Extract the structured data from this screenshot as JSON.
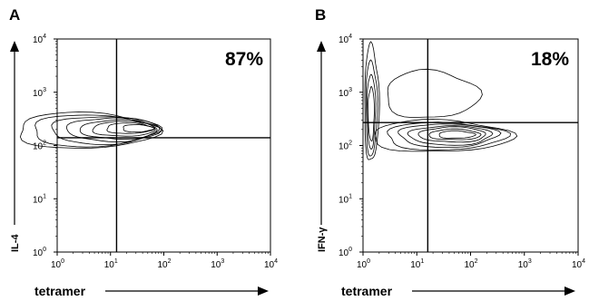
{
  "chart_data": [
    {
      "type": "contour",
      "panel": "A",
      "xlabel": "tetramer",
      "ylabel": "IL-4",
      "xscale": "log",
      "yscale": "log",
      "xlim": [
        1,
        10000
      ],
      "ylim": [
        1,
        10000
      ],
      "x_ticks": [
        {
          "base": "10",
          "exp": "0"
        },
        {
          "base": "10",
          "exp": "1"
        },
        {
          "base": "10",
          "exp": "2"
        },
        {
          "base": "10",
          "exp": "3"
        },
        {
          "base": "10",
          "exp": "4"
        }
      ],
      "y_ticks": [
        {
          "base": "10",
          "exp": "0"
        },
        {
          "base": "10",
          "exp": "1"
        },
        {
          "base": "10",
          "exp": "2"
        },
        {
          "base": "10",
          "exp": "3"
        },
        {
          "base": "10",
          "exp": "4"
        }
      ],
      "gate": {
        "x": 13,
        "y": 140
      },
      "annotation": "87%",
      "contours": [
        {
          "level": 1,
          "cx": 2.5,
          "cy": 190,
          "rx_dec": 1.35,
          "ry_dec": 0.34
        },
        {
          "level": 2,
          "cx": 3.5,
          "cy": 190,
          "rx_dec": 1.2,
          "ry_dec": 0.3
        },
        {
          "level": 3,
          "cx": 6,
          "cy": 195,
          "rx_dec": 1.05,
          "ry_dec": 0.26
        },
        {
          "level": 4,
          "cx": 9,
          "cy": 200,
          "rx_dec": 0.9,
          "ry_dec": 0.22
        },
        {
          "level": 5,
          "cx": 12,
          "cy": 200,
          "rx_dec": 0.75,
          "ry_dec": 0.18
        },
        {
          "level": 6,
          "cx": 15,
          "cy": 205,
          "rx_dec": 0.6,
          "ry_dec": 0.14
        },
        {
          "level": 7,
          "cx": 20,
          "cy": 210,
          "rx_dec": 0.45,
          "ry_dec": 0.1
        },
        {
          "level": 8,
          "cx": 30,
          "cy": 210,
          "rx_dec": 0.3,
          "ry_dec": 0.07
        }
      ]
    },
    {
      "type": "contour",
      "panel": "B",
      "xlabel": "tetramer",
      "ylabel": "IFN-γ",
      "xscale": "log",
      "yscale": "log",
      "xlim": [
        1,
        10000
      ],
      "ylim": [
        1,
        10000
      ],
      "x_ticks": [
        {
          "base": "10",
          "exp": "0"
        },
        {
          "base": "10",
          "exp": "1"
        },
        {
          "base": "10",
          "exp": "2"
        },
        {
          "base": "10",
          "exp": "3"
        },
        {
          "base": "10",
          "exp": "4"
        }
      ],
      "y_ticks": [
        {
          "base": "10",
          "exp": "0"
        },
        {
          "base": "10",
          "exp": "1"
        },
        {
          "base": "10",
          "exp": "2"
        },
        {
          "base": "10",
          "exp": "3"
        },
        {
          "base": "10",
          "exp": "4"
        }
      ],
      "gate": {
        "x": 16,
        "y": 270
      },
      "annotation": "18%",
      "contours": [
        {
          "level": 1,
          "cx": 20,
          "cy": 150,
          "rx_dec": 1.35,
          "ry_dec": 0.3
        },
        {
          "level": 2,
          "cx": 25,
          "cy": 150,
          "rx_dec": 1.15,
          "ry_dec": 0.26
        },
        {
          "level": 3,
          "cx": 30,
          "cy": 155,
          "rx_dec": 0.95,
          "ry_dec": 0.22
        },
        {
          "level": 4,
          "cx": 35,
          "cy": 155,
          "rx_dec": 0.8,
          "ry_dec": 0.18
        },
        {
          "level": 5,
          "cx": 40,
          "cy": 160,
          "rx_dec": 0.65,
          "ry_dec": 0.14
        },
        {
          "level": 6,
          "cx": 45,
          "cy": 160,
          "rx_dec": 0.5,
          "ry_dec": 0.1
        },
        {
          "level": 7,
          "cx": 50,
          "cy": 160,
          "rx_dec": 0.35,
          "ry_dec": 0.07
        },
        {
          "level": 1,
          "cx": 1.4,
          "cy": 600,
          "rx_dec": 0.14,
          "ry_dec": 1.1
        },
        {
          "level": 2,
          "cx": 1.4,
          "cy": 500,
          "rx_dec": 0.11,
          "ry_dec": 0.9
        },
        {
          "level": 3,
          "cx": 1.4,
          "cy": 450,
          "rx_dec": 0.08,
          "ry_dec": 0.7
        },
        {
          "level": 4,
          "cx": 1.4,
          "cy": 400,
          "rx_dec": 0.06,
          "ry_dec": 0.5
        },
        {
          "level": 1,
          "cx": 15,
          "cy": 900,
          "rx_dec": 0.9,
          "ry_dec": 0.45
        }
      ]
    }
  ]
}
